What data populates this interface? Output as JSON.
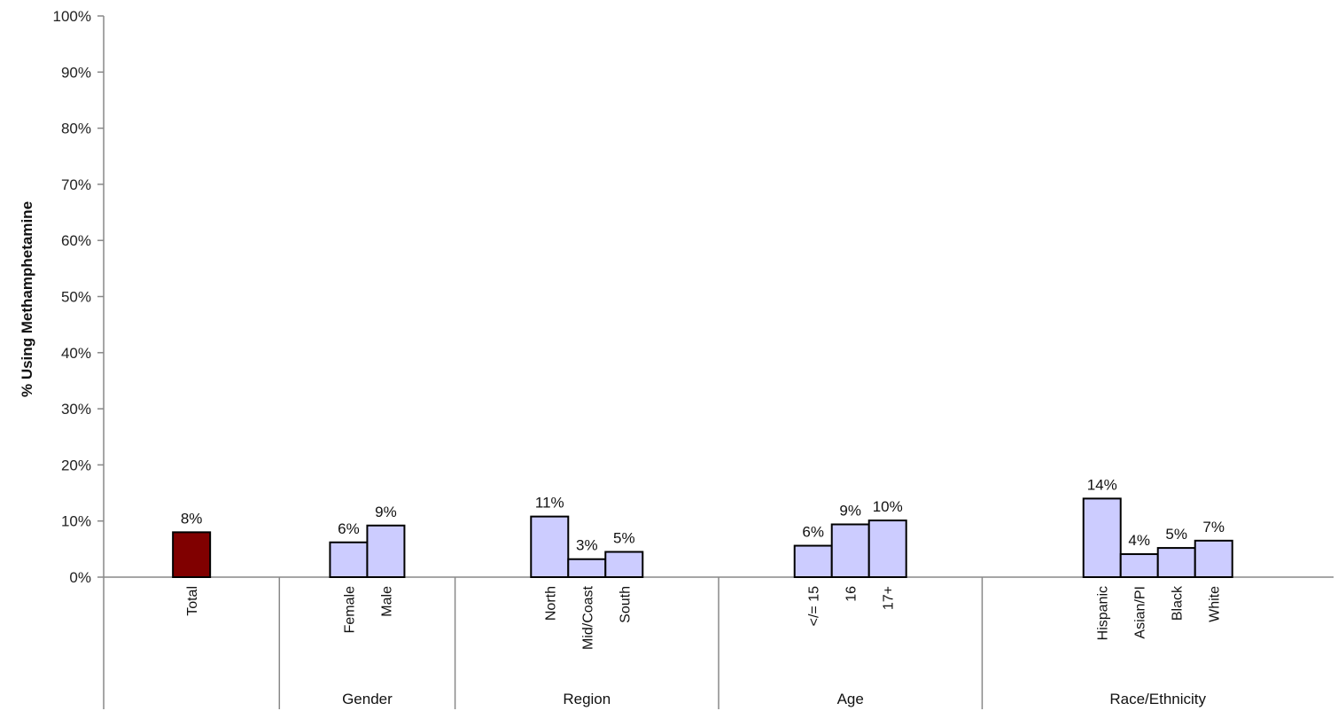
{
  "chart_data": {
    "type": "bar",
    "ylabel": "% Using Methamphetamine",
    "ylim": [
      0,
      100
    ],
    "y_ticks": [
      "0%",
      "10%",
      "20%",
      "30%",
      "40%",
      "50%",
      "60%",
      "70%",
      "80%",
      "90%",
      "100%"
    ],
    "grid": false,
    "colors": {
      "total": "#800000",
      "other": "#ccccff",
      "outline": "#000000"
    },
    "groups": [
      {
        "name": "",
        "bars": [
          {
            "category": "Total",
            "value": 8,
            "label": "8%",
            "highlight": true
          }
        ]
      },
      {
        "name": "Gender",
        "bars": [
          {
            "category": "Female",
            "value": 6.2,
            "label": "6%"
          },
          {
            "category": "Male",
            "value": 9.2,
            "label": "9%"
          }
        ]
      },
      {
        "name": "Region",
        "bars": [
          {
            "category": "North",
            "value": 10.8,
            "label": "11%"
          },
          {
            "category": "Mid/Coast",
            "value": 3.2,
            "label": "3%"
          },
          {
            "category": "South",
            "value": 4.5,
            "label": "5%"
          }
        ]
      },
      {
        "name": "Age",
        "bars": [
          {
            "category": "</= 15",
            "value": 5.6,
            "label": "6%"
          },
          {
            "category": "16",
            "value": 9.4,
            "label": "9%"
          },
          {
            "category": "17+",
            "value": 10.1,
            "label": "10%"
          }
        ]
      },
      {
        "name": "Race/Ethnicity",
        "bars": [
          {
            "category": "Hispanic",
            "value": 14,
            "label": "14%"
          },
          {
            "category": "Asian/PI",
            "value": 4.1,
            "label": "4%"
          },
          {
            "category": "Black",
            "value": 5.2,
            "label": "5%"
          },
          {
            "category": "White",
            "value": 6.5,
            "label": "7%"
          }
        ]
      }
    ]
  }
}
